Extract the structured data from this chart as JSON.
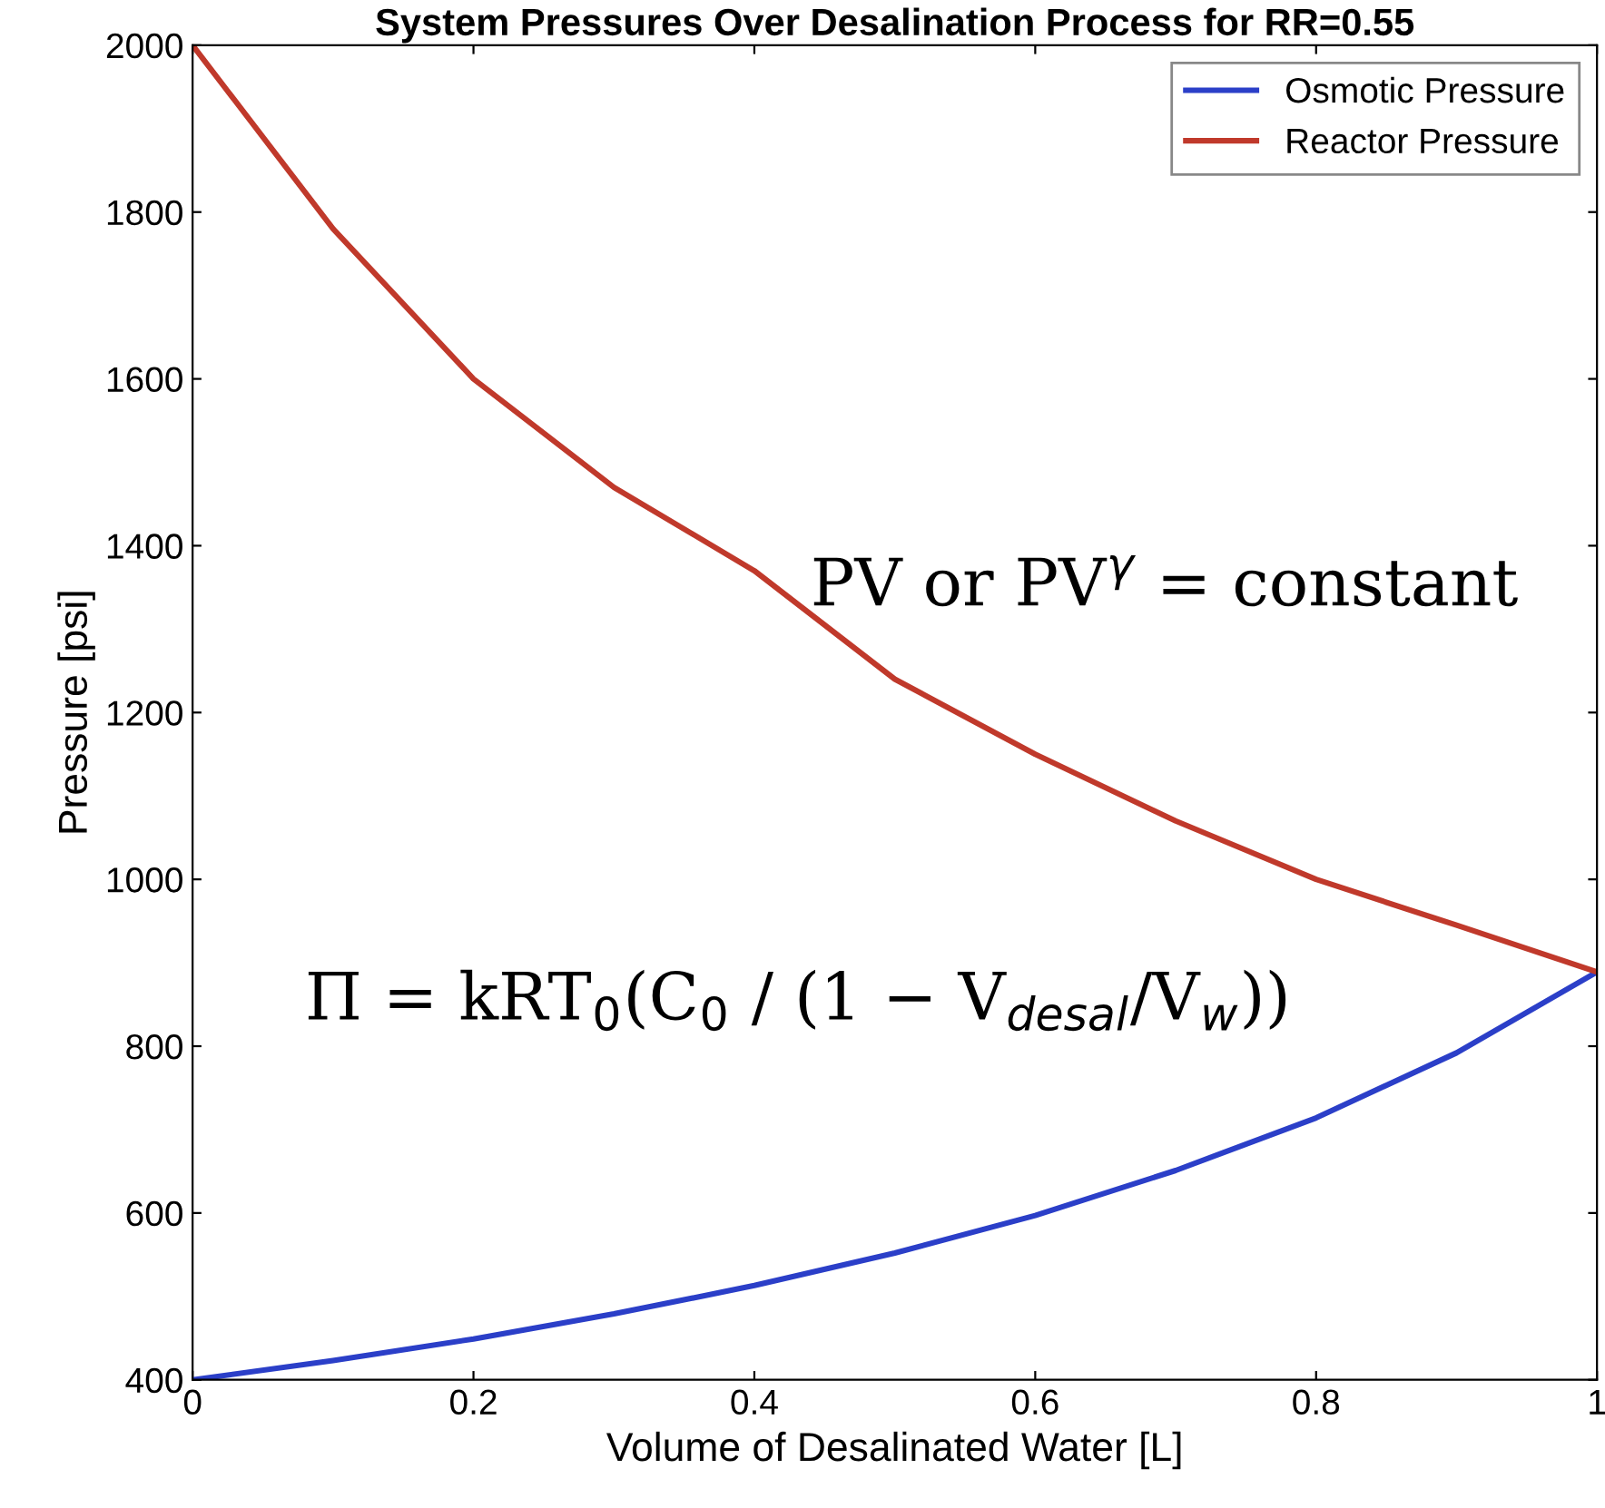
{
  "chart_data": {
    "type": "line",
    "title": "System Pressures Over Desalination Process for RR=0.55",
    "xlabel": "Volume of Desalinated Water [L]",
    "ylabel": "Pressure [psi]",
    "x": [
      0,
      0.1,
      0.2,
      0.3,
      0.4,
      0.5,
      0.6,
      0.7,
      0.8,
      0.9,
      1
    ],
    "series": [
      {
        "name": "Osmotic Pressure",
        "color": "#2b3fc8",
        "values": [
          400,
          423,
          449,
          479,
          513,
          552,
          597,
          651,
          714,
          792,
          889
        ]
      },
      {
        "name": "Reactor Pressure",
        "color": "#c0392b",
        "values": [
          2000,
          1780,
          1600,
          1470,
          1370,
          1240,
          1150,
          1070,
          1000,
          945,
          889
        ]
      }
    ],
    "xlim": [
      0,
      1
    ],
    "xticks": [
      0,
      0.2,
      0.4,
      0.6,
      0.8,
      1
    ],
    "ylim": [
      400,
      2000
    ],
    "yticks": [
      400,
      600,
      800,
      1000,
      1200,
      1400,
      1600,
      1800,
      2000
    ],
    "grid": false,
    "legend": "top right",
    "marker": "none",
    "line_style": "solid",
    "annotations": [
      "PV or PV$^{γ}$ = constant",
      "Π = kRT$_{0}$(C$_{0}$ / (1 − V$_{desal}$/V$_{w}$))"
    ]
  }
}
